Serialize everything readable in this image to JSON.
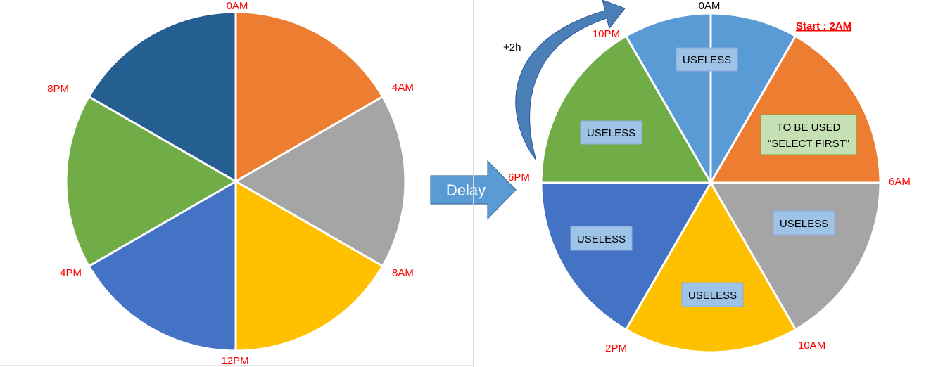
{
  "colors": {
    "orange": "#ED7D31",
    "gray": "#A5A5A5",
    "yellow": "#FFC000",
    "blue": "#4472C4",
    "green": "#70AD47",
    "dark_blue": "#255E91",
    "light_blue": "#5B9BD5",
    "label_red": "#FF0000",
    "useless_box_fill": "#9DC3E6",
    "useless_box_border": "#8FAADC",
    "select_box_fill": "#C5E0B4",
    "select_box_border": "#70AD47",
    "delay_arrow": "#5B9BD5",
    "curved_arrow": "#4A7FB8"
  },
  "left_wheel": {
    "segments": [
      {
        "name": "segment-0am-4am",
        "color_key": "orange"
      },
      {
        "name": "segment-4am-8am",
        "color_key": "gray"
      },
      {
        "name": "segment-8am-12pm",
        "color_key": "yellow"
      },
      {
        "name": "segment-12pm-4pm",
        "color_key": "blue"
      },
      {
        "name": "segment-4pm-8pm",
        "color_key": "green"
      },
      {
        "name": "segment-8pm-0am",
        "color_key": "dark_blue"
      }
    ],
    "labels": [
      "0AM",
      "4AM",
      "8AM",
      "12PM",
      "4PM",
      "8PM"
    ]
  },
  "delay_label": "Delay",
  "shift_label": "+2h",
  "right_wheel": {
    "segments": [
      {
        "name": "segment-10pm-2am",
        "color_key": "light_blue"
      },
      {
        "name": "segment-2am-6am",
        "color_key": "orange"
      },
      {
        "name": "segment-6am-10am",
        "color_key": "gray"
      },
      {
        "name": "segment-10am-2pm",
        "color_key": "yellow"
      },
      {
        "name": "segment-2pm-6pm",
        "color_key": "blue"
      },
      {
        "name": "segment-6pm-10pm",
        "color_key": "green"
      }
    ],
    "top_label": "0AM",
    "start_label": "Start : 2AM",
    "labels": [
      "6AM",
      "10AM",
      "2PM",
      "6PM",
      "10PM"
    ],
    "useless_label": "USELESS",
    "select_label_line1": "TO BE USED",
    "select_label_line2": "\"SELECT FIRST\""
  }
}
